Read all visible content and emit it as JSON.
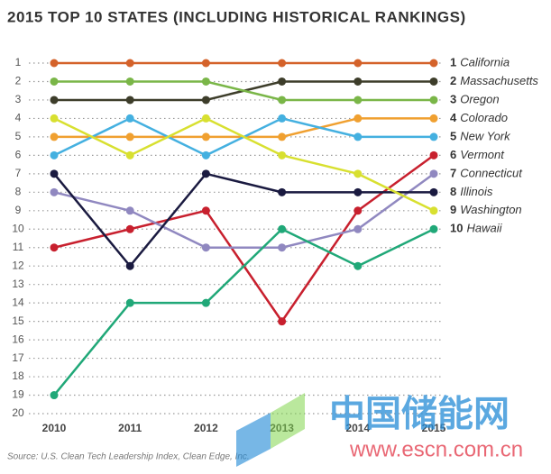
{
  "chart_data": {
    "type": "bump",
    "title": "2015 TOP 10 STATES (INCLUDING HISTORICAL RANKINGS)",
    "source": "Source: U.S. Clean Tech Leadership Index, Clean Edge, Inc.",
    "categories": [
      "2010",
      "2011",
      "2012",
      "2013",
      "2014",
      "2015"
    ],
    "ylim": [
      1,
      20
    ],
    "yticks": [
      1,
      2,
      3,
      4,
      5,
      6,
      7,
      8,
      9,
      10,
      11,
      12,
      13,
      14,
      15,
      16,
      17,
      18,
      19,
      20
    ],
    "y_inverted": true,
    "grid": true,
    "series": [
      {
        "name": "California",
        "color": "#d4622a",
        "values": [
          1,
          1,
          1,
          1,
          1,
          1
        ]
      },
      {
        "name": "Massachusetts",
        "color": "#3d3d2a",
        "values": [
          3,
          3,
          3,
          2,
          2,
          2
        ]
      },
      {
        "name": "Oregon",
        "color": "#7ab648",
        "values": [
          2,
          2,
          2,
          3,
          3,
          3
        ]
      },
      {
        "name": "Colorado",
        "color": "#f0a030",
        "values": [
          5,
          5,
          5,
          5,
          4,
          4
        ]
      },
      {
        "name": "New York",
        "color": "#44b0e0",
        "values": [
          6,
          4,
          6,
          4,
          5,
          5
        ]
      },
      {
        "name": "Vermont",
        "color": "#c8202e",
        "values": [
          11,
          10,
          9,
          15,
          9,
          6
        ]
      },
      {
        "name": "Connecticut",
        "color": "#9088c0",
        "values": [
          8,
          9,
          11,
          11,
          10,
          7
        ]
      },
      {
        "name": "Illinois",
        "color": "#1a1a40",
        "values": [
          7,
          12,
          7,
          8,
          8,
          8
        ]
      },
      {
        "name": "Washington",
        "color": "#d8e030",
        "values": [
          4,
          6,
          4,
          6,
          7,
          9
        ]
      },
      {
        "name": "Hawaii",
        "color": "#20a878",
        "values": [
          19,
          14,
          14,
          10,
          12,
          10
        ]
      }
    ]
  },
  "watermark": [
    "中国储能网",
    "www.escn.com.cn"
  ]
}
